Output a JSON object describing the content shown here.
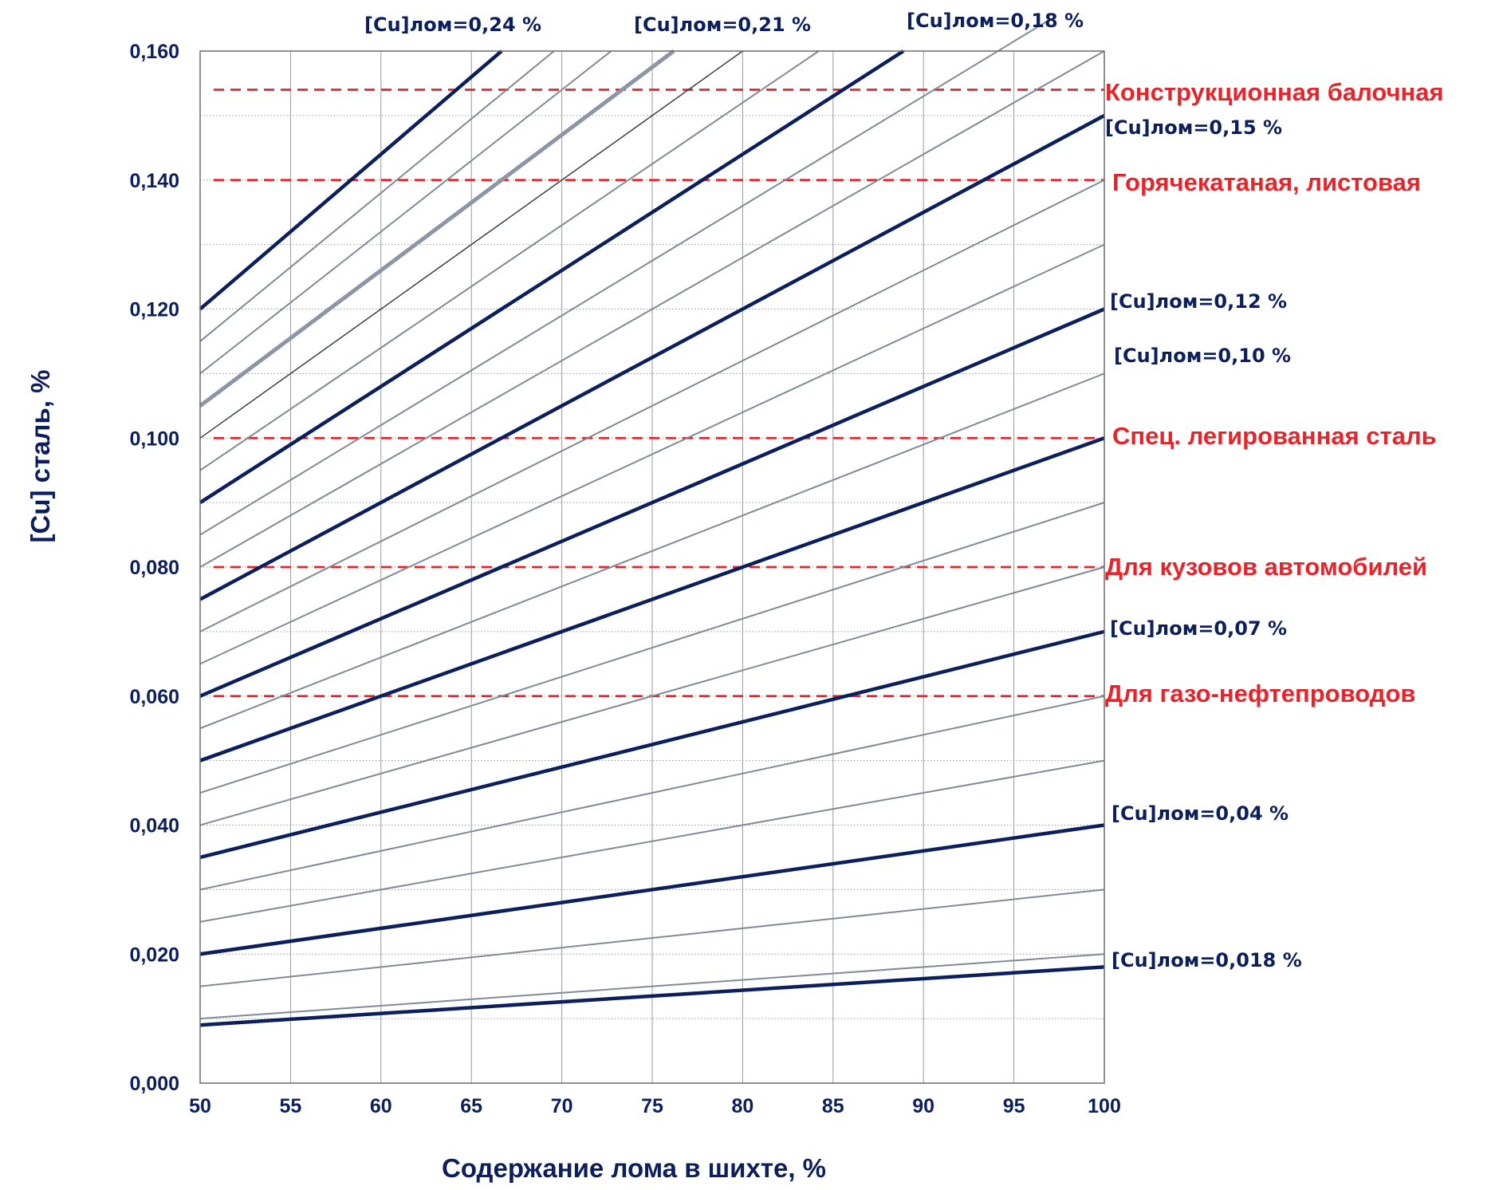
{
  "chart_data": {
    "type": "line",
    "xlabel": "Содержание лома в шихте, %",
    "ylabel": "[Cu] сталь, %",
    "xlim": [
      50,
      100
    ],
    "ylim": [
      0,
      0.16
    ],
    "x_ticks": [
      "50",
      "55",
      "60",
      "65",
      "70",
      "75",
      "80",
      "85",
      "90",
      "95",
      "100"
    ],
    "y_ticks": [
      "0,000",
      "0,020",
      "0,040",
      "0,060",
      "0,080",
      "0,100",
      "0,120",
      "0,140",
      "0,160"
    ],
    "grid": true,
    "colors": {
      "bold": "#0b1f5c",
      "thin": "#7f8a98",
      "reference": "#e8232a",
      "axis_text": "#0b1f5c"
    },
    "series": [
      {
        "scrap_cu": 0.018,
        "bold": true,
        "points": [
          [
            50,
            0.009
          ],
          [
            100,
            0.018
          ]
        ]
      },
      {
        "scrap_cu": 0.02,
        "bold": false,
        "points": [
          [
            50,
            0.01
          ],
          [
            100,
            0.02
          ]
        ]
      },
      {
        "scrap_cu": 0.03,
        "bold": false,
        "points": [
          [
            50,
            0.015
          ],
          [
            100,
            0.03
          ]
        ]
      },
      {
        "scrap_cu": 0.04,
        "bold": true,
        "points": [
          [
            50,
            0.02
          ],
          [
            100,
            0.04
          ]
        ]
      },
      {
        "scrap_cu": 0.05,
        "bold": false,
        "points": [
          [
            50,
            0.025
          ],
          [
            100,
            0.05
          ]
        ]
      },
      {
        "scrap_cu": 0.06,
        "bold": false,
        "points": [
          [
            50,
            0.03
          ],
          [
            100,
            0.06
          ]
        ]
      },
      {
        "scrap_cu": 0.07,
        "bold": true,
        "points": [
          [
            50,
            0.035
          ],
          [
            100,
            0.07
          ]
        ]
      },
      {
        "scrap_cu": 0.08,
        "bold": false,
        "points": [
          [
            50,
            0.04
          ],
          [
            100,
            0.08
          ]
        ]
      },
      {
        "scrap_cu": 0.09,
        "bold": false,
        "points": [
          [
            50,
            0.045
          ],
          [
            100,
            0.09
          ]
        ]
      },
      {
        "scrap_cu": 0.1,
        "bold": true,
        "points": [
          [
            50,
            0.05
          ],
          [
            100,
            0.1
          ]
        ]
      },
      {
        "scrap_cu": 0.11,
        "bold": false,
        "points": [
          [
            50,
            0.055
          ],
          [
            100,
            0.11
          ]
        ]
      },
      {
        "scrap_cu": 0.12,
        "bold": true,
        "points": [
          [
            50,
            0.06
          ],
          [
            100,
            0.12
          ]
        ]
      },
      {
        "scrap_cu": 0.13,
        "bold": false,
        "points": [
          [
            50,
            0.065
          ],
          [
            100,
            0.13
          ]
        ]
      },
      {
        "scrap_cu": 0.14,
        "bold": false,
        "points": [
          [
            50,
            0.07
          ],
          [
            100,
            0.14
          ]
        ]
      },
      {
        "scrap_cu": 0.15,
        "bold": true,
        "points": [
          [
            50,
            0.075
          ],
          [
            100,
            0.15
          ]
        ]
      },
      {
        "scrap_cu": 0.16,
        "bold": false,
        "points": [
          [
            50,
            0.08
          ],
          [
            100,
            0.16
          ]
        ]
      },
      {
        "scrap_cu": 0.17,
        "bold": false,
        "points": [
          [
            50,
            0.085
          ],
          [
            97.06,
            0.165
          ]
        ]
      },
      {
        "scrap_cu": 0.18,
        "bold": true,
        "points": [
          [
            50,
            0.09
          ],
          [
            88.89,
            0.16
          ]
        ]
      },
      {
        "scrap_cu": 0.19,
        "bold": false,
        "points": [
          [
            50,
            0.095
          ],
          [
            84.21,
            0.16
          ]
        ]
      },
      {
        "scrap_cu": 0.2,
        "bold": false,
        "dark_thin": true,
        "points": [
          [
            50,
            0.1
          ],
          [
            80,
            0.16
          ]
        ]
      },
      {
        "scrap_cu": 0.21,
        "bold": false,
        "gray_thick": true,
        "points": [
          [
            50,
            0.105
          ],
          [
            76.19,
            0.16
          ]
        ]
      },
      {
        "scrap_cu": 0.22,
        "bold": false,
        "points": [
          [
            50,
            0.11
          ],
          [
            72.73,
            0.16
          ]
        ]
      },
      {
        "scrap_cu": 0.23,
        "bold": false,
        "points": [
          [
            50,
            0.115
          ],
          [
            69.57,
            0.16
          ]
        ]
      },
      {
        "scrap_cu": 0.24,
        "bold": true,
        "points": [
          [
            50,
            0.12
          ],
          [
            66.67,
            0.16
          ]
        ]
      }
    ],
    "series_labels": [
      {
        "text": "[Cu]лом=0,24 %"
      },
      {
        "text": "[Cu]лом=0,21 %"
      },
      {
        "text": "[Cu]лом=0,18 %"
      },
      {
        "text": "[Cu]лом=0,15 %"
      },
      {
        "text": "[Cu]лом=0,12 %"
      },
      {
        "text": "[Cu]лом=0,10 %"
      },
      {
        "text": "[Cu]лом=0,07 %"
      },
      {
        "text": "[Cu]лом=0,04 %"
      },
      {
        "text": "[Cu]лом=0,018 %"
      }
    ],
    "reference_lines": [
      {
        "label": "Конструкционная балочная",
        "y": 0.154
      },
      {
        "label": "Горячекатаная, листовая",
        "y": 0.14
      },
      {
        "label": "Спец. легированная сталь",
        "y": 0.1
      },
      {
        "label": "Для кузовов автомобилей",
        "y": 0.08
      },
      {
        "label": "Для газо-нефтепроводов",
        "y": 0.06
      }
    ]
  }
}
